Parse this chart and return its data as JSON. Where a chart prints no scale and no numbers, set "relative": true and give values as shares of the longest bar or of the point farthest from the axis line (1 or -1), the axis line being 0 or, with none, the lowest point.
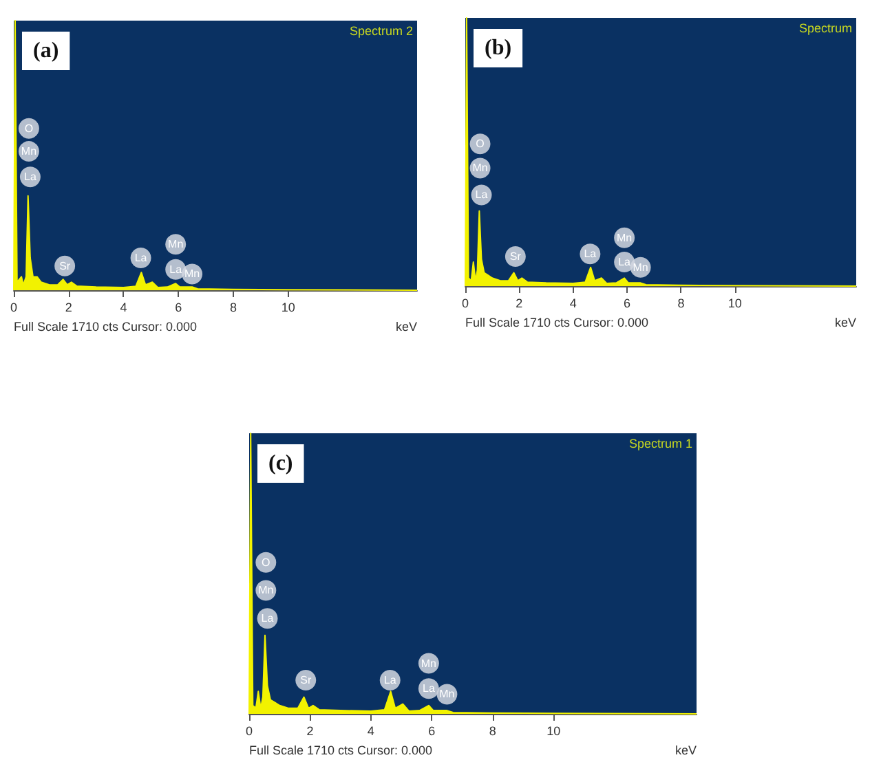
{
  "chart_data": [
    {
      "type": "area",
      "title": "(a)",
      "xlabel": "keV",
      "relative": true,
      "color": "#f2f200",
      "xlim": [
        0,
        14.7
      ],
      "xticks": [
        0,
        2,
        4,
        6,
        8,
        10
      ],
      "x": [
        0,
        0.05,
        0.12,
        0.28,
        0.35,
        0.45,
        0.52,
        0.6,
        0.7,
        0.85,
        1.0,
        1.3,
        1.6,
        1.8,
        1.95,
        2.1,
        2.3,
        3.0,
        4.0,
        4.45,
        4.65,
        4.8,
        5.05,
        5.25,
        5.6,
        5.9,
        6.05,
        6.5,
        6.7,
        8,
        10,
        14.7
      ],
      "values": [
        0,
        1,
        0.03,
        0.05,
        0.02,
        0.05,
        0.35,
        0.12,
        0.05,
        0.05,
        0.03,
        0.02,
        0.02,
        0.04,
        0.02,
        0.03,
        0.015,
        0.012,
        0.01,
        0.015,
        0.066,
        0.02,
        0.03,
        0.01,
        0.012,
        0.025,
        0.012,
        0.012,
        0.005,
        0.003,
        0.002,
        0
      ],
      "annotations": [
        "Spectrum 2",
        "Full Scale 1710 cts Cursor: 0.000",
        {
          "text": "O",
          "x": 0.55,
          "y": 0.6
        },
        {
          "text": "Mn",
          "x": 0.55,
          "y": 0.515
        },
        {
          "text": "La",
          "x": 0.6,
          "y": 0.42
        },
        {
          "text": "Sr",
          "x": 1.86,
          "y": 0.09
        },
        {
          "text": "La",
          "x": 4.63,
          "y": 0.12
        },
        {
          "text": "Mn",
          "x": 5.9,
          "y": 0.17
        },
        {
          "text": "La",
          "x": 5.9,
          "y": 0.077
        },
        {
          "text": "Mn",
          "x": 6.5,
          "y": 0.06
        }
      ]
    },
    {
      "type": "area",
      "title": "(b)",
      "xlabel": "keV",
      "relative": true,
      "color": "#f2f200",
      "xlim": [
        0,
        14.5
      ],
      "xticks": [
        0,
        2,
        4,
        6,
        8,
        10
      ],
      "x": [
        0,
        0.05,
        0.12,
        0.22,
        0.3,
        0.38,
        0.45,
        0.52,
        0.6,
        0.7,
        0.85,
        1.0,
        1.3,
        1.6,
        1.8,
        1.95,
        2.1,
        2.3,
        3.0,
        4.0,
        4.45,
        4.65,
        4.8,
        5.05,
        5.25,
        5.6,
        5.9,
        6.05,
        6.5,
        6.7,
        8,
        10,
        14.5
      ],
      "values": [
        0,
        1,
        0.03,
        0.02,
        0.09,
        0.02,
        0.06,
        0.28,
        0.1,
        0.05,
        0.04,
        0.03,
        0.02,
        0.02,
        0.05,
        0.02,
        0.03,
        0.015,
        0.012,
        0.01,
        0.015,
        0.07,
        0.02,
        0.03,
        0.01,
        0.012,
        0.03,
        0.012,
        0.012,
        0.005,
        0.003,
        0.002,
        0
      ],
      "annotations": [
        "Spectrum",
        "Full Scale 1710 cts Cursor: 0.000",
        {
          "text": "O",
          "x": 0.55,
          "y": 0.53
        },
        {
          "text": "Mn",
          "x": 0.55,
          "y": 0.44
        },
        {
          "text": "La",
          "x": 0.6,
          "y": 0.34
        },
        {
          "text": "Sr",
          "x": 1.86,
          "y": 0.11
        },
        {
          "text": "La",
          "x": 4.63,
          "y": 0.12
        },
        {
          "text": "Mn",
          "x": 5.9,
          "y": 0.18
        },
        {
          "text": "La",
          "x": 5.9,
          "y": 0.09
        },
        {
          "text": "Mn",
          "x": 6.5,
          "y": 0.07
        }
      ]
    },
    {
      "type": "area",
      "title": "(c)",
      "xlabel": "keV",
      "relative": true,
      "color": "#f2f200",
      "xlim": [
        0,
        14.7
      ],
      "xticks": [
        0,
        2,
        4,
        6,
        8,
        10
      ],
      "x": [
        0,
        0.05,
        0.12,
        0.22,
        0.3,
        0.38,
        0.45,
        0.52,
        0.6,
        0.7,
        0.85,
        1.0,
        1.3,
        1.6,
        1.8,
        1.95,
        2.1,
        2.3,
        3.0,
        4.0,
        4.45,
        4.65,
        4.8,
        5.05,
        5.25,
        5.6,
        5.9,
        6.05,
        6.5,
        6.7,
        8,
        10,
        14.7
      ],
      "values": [
        0,
        1,
        0.03,
        0.02,
        0.08,
        0.02,
        0.06,
        0.28,
        0.1,
        0.05,
        0.04,
        0.03,
        0.02,
        0.02,
        0.06,
        0.02,
        0.03,
        0.015,
        0.012,
        0.01,
        0.015,
        0.08,
        0.02,
        0.035,
        0.01,
        0.012,
        0.03,
        0.012,
        0.012,
        0.005,
        0.003,
        0.002,
        0
      ],
      "annotations": [
        "Spectrum 1",
        "Full Scale 1710 cts Cursor: 0.000",
        {
          "text": "O",
          "x": 0.55,
          "y": 0.54
        },
        {
          "text": "Mn",
          "x": 0.55,
          "y": 0.44
        },
        {
          "text": "La",
          "x": 0.6,
          "y": 0.34
        },
        {
          "text": "Sr",
          "x": 1.86,
          "y": 0.12
        },
        {
          "text": "La",
          "x": 4.63,
          "y": 0.12
        },
        {
          "text": "Mn",
          "x": 5.9,
          "y": 0.18
        },
        {
          "text": "La",
          "x": 5.9,
          "y": 0.09
        },
        {
          "text": "Mn",
          "x": 6.5,
          "y": 0.07
        }
      ]
    }
  ]
}
